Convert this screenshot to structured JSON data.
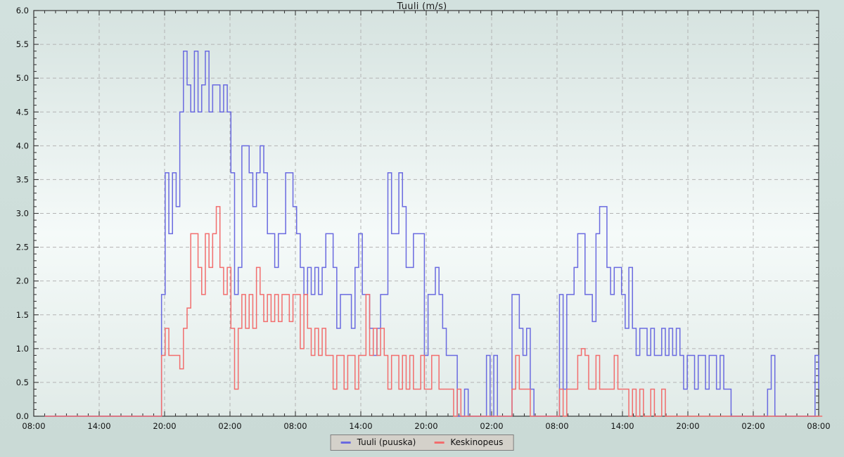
{
  "title": "Tuuli (m/s)",
  "legend": {
    "items": [
      {
        "label": "Tuuli (puuska)",
        "color": "#6a6ae0"
      },
      {
        "label": "Keskinopeus",
        "color": "#f26d6d"
      }
    ]
  },
  "chart_data": {
    "type": "line",
    "step": true,
    "title": "Tuuli (m/s)",
    "xlabel": "",
    "ylabel": "",
    "ylim": [
      0,
      6
    ],
    "y_tick_labels": [
      "0.0",
      "0.5",
      "1.0",
      "1.5",
      "2.0",
      "2.5",
      "3.0",
      "3.5",
      "4.0",
      "4.5",
      "5.0",
      "5.5",
      "6.0"
    ],
    "x_hours_total": 72,
    "x_major_every_hours": 6,
    "x_tick_labels": [
      "08:00",
      "14:00",
      "20:00",
      "02:00",
      "08:00",
      "14:00",
      "20:00",
      "02:00",
      "08:00",
      "14:00",
      "20:00",
      "02:00",
      "08:00"
    ],
    "step_minutes": 20,
    "grid": true,
    "legend_position": "bottom-center",
    "colors": {
      "frame": "#3a3a3a",
      "grid": "#b4b4b4",
      "tick_text": "#111111",
      "plot_bg_top": "#d6e3e0",
      "plot_bg_mid": "#f5faf9",
      "plot_bg_bottom": "#e1ebe8"
    },
    "series": [
      {
        "name": "Tuuli (puuska)",
        "color": "#6a6ae0",
        "values": [
          null,
          null,
          null,
          0,
          0,
          0,
          0,
          0,
          0,
          0,
          0,
          0,
          0,
          0,
          0,
          0,
          0,
          0,
          0,
          0,
          0,
          0,
          0,
          0,
          0,
          0,
          0,
          0,
          0,
          0,
          0,
          0,
          0,
          0,
          0,
          1.8,
          3.6,
          2.7,
          3.6,
          3.1,
          4.5,
          5.4,
          4.9,
          4.5,
          5.4,
          4.5,
          4.9,
          5.4,
          4.5,
          4.9,
          4.9,
          4.5,
          4.9,
          4.5,
          3.6,
          1.8,
          2.2,
          4.0,
          4.0,
          3.6,
          3.1,
          3.6,
          4.0,
          3.6,
          2.7,
          2.7,
          2.2,
          2.7,
          2.7,
          3.6,
          3.6,
          3.1,
          2.7,
          2.2,
          1.8,
          2.2,
          1.8,
          2.2,
          1.8,
          2.2,
          2.7,
          2.7,
          2.2,
          1.3,
          1.8,
          1.8,
          1.8,
          1.3,
          2.2,
          2.7,
          1.8,
          1.8,
          1.3,
          0.9,
          1.3,
          1.8,
          1.8,
          3.6,
          2.7,
          2.7,
          3.6,
          3.1,
          2.2,
          2.2,
          2.7,
          2.7,
          2.7,
          0.9,
          1.8,
          1.8,
          2.2,
          1.8,
          1.3,
          0.9,
          0.9,
          0.9,
          0,
          0,
          0.4,
          0,
          0,
          0,
          0,
          0,
          0.9,
          0,
          0.9,
          0,
          0,
          0,
          0,
          1.8,
          1.8,
          1.3,
          0.9,
          1.3,
          0.4,
          0,
          0,
          0,
          0,
          0,
          0,
          0,
          1.8,
          0.4,
          1.8,
          1.8,
          2.2,
          2.7,
          2.7,
          1.8,
          1.8,
          1.4,
          2.7,
          3.1,
          3.1,
          2.2,
          1.8,
          2.2,
          2.2,
          1.8,
          1.3,
          2.2,
          1.3,
          0.9,
          1.3,
          1.3,
          0.9,
          1.3,
          0.9,
          0.9,
          1.3,
          0.9,
          1.3,
          0.9,
          1.3,
          0.9,
          0.4,
          0.9,
          0.9,
          0.4,
          0.9,
          0.9,
          0.4,
          0.9,
          0.9,
          0.4,
          0.9,
          0.4,
          0.4,
          0,
          0,
          0,
          0,
          0,
          0,
          0,
          0,
          0,
          0,
          0.4,
          0.9,
          0,
          0,
          0,
          0,
          0,
          0,
          0,
          0,
          0,
          0,
          0,
          0.9,
          0.4
        ]
      },
      {
        "name": "Keskinopeus",
        "color": "#f26d6d",
        "values": [
          null,
          null,
          null,
          0,
          0,
          0,
          0,
          0,
          0,
          0,
          0,
          0,
          0,
          0,
          0,
          0,
          0,
          0,
          0,
          0,
          0,
          0,
          0,
          0,
          0,
          0,
          0,
          0,
          0,
          0,
          0,
          0,
          0,
          0,
          0,
          0.9,
          1.3,
          0.9,
          0.9,
          0.9,
          0.7,
          1.3,
          1.6,
          2.7,
          2.7,
          2.2,
          1.8,
          2.7,
          2.2,
          2.7,
          3.1,
          2.2,
          1.8,
          2.2,
          1.3,
          0.4,
          1.3,
          1.8,
          1.3,
          1.8,
          1.3,
          2.2,
          1.8,
          1.4,
          1.8,
          1.4,
          1.8,
          1.4,
          1.8,
          1.8,
          1.4,
          1.8,
          1.8,
          1.0,
          1.8,
          1.3,
          0.9,
          1.3,
          0.9,
          1.3,
          0.9,
          0.9,
          0.4,
          0.9,
          0.9,
          0.4,
          0.9,
          0.9,
          0.4,
          0.9,
          0.9,
          1.8,
          0.9,
          1.3,
          0.9,
          1.3,
          0.9,
          0.4,
          0.9,
          0.9,
          0.4,
          0.9,
          0.4,
          0.9,
          0.4,
          0.4,
          0.9,
          0.4,
          0.4,
          0.9,
          0.9,
          0.4,
          0.4,
          0.4,
          0.4,
          0,
          0.4,
          0,
          0,
          0,
          0,
          0,
          0,
          0,
          0,
          0,
          0,
          0,
          0,
          0,
          0,
          0.4,
          0.9,
          0.4,
          0.4,
          0.4,
          0,
          0,
          0,
          0,
          0,
          0,
          0,
          0,
          0.4,
          0,
          0.4,
          0.4,
          0.4,
          0.9,
          1.0,
          0.9,
          0.4,
          0.4,
          0.9,
          0.4,
          0.4,
          0.4,
          0.4,
          0.9,
          0.4,
          0.4,
          0.4,
          0,
          0.4,
          0,
          0.4,
          0,
          0,
          0.4,
          0,
          0,
          0.4,
          0,
          0,
          0,
          0,
          0,
          0,
          0,
          0,
          0,
          0,
          0,
          0,
          0,
          0,
          0,
          0,
          0,
          0,
          0,
          0,
          0,
          0,
          0,
          0,
          0,
          0,
          0,
          0,
          0,
          0,
          0,
          0,
          0,
          0,
          0,
          0,
          0,
          0,
          0,
          0,
          0,
          0,
          0,
          0
        ]
      }
    ]
  }
}
